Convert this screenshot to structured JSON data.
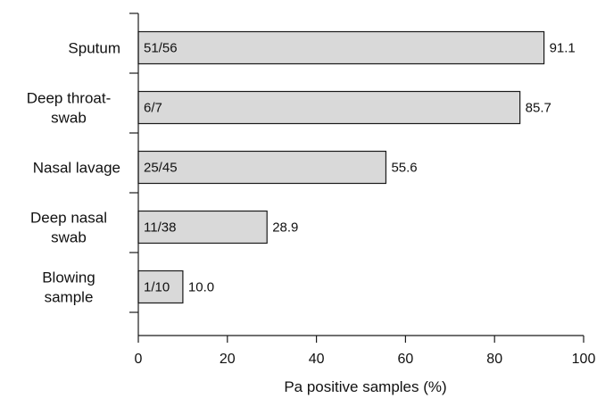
{
  "chart_data": {
    "type": "bar",
    "orientation": "horizontal",
    "categories": [
      [
        "Sputum"
      ],
      [
        "Deep throat-",
        "swab"
      ],
      [
        "Nasal lavage"
      ],
      [
        "Deep nasal",
        "swab"
      ],
      [
        "Blowing",
        "sample"
      ]
    ],
    "values": [
      91.1,
      85.7,
      55.6,
      28.9,
      10.0
    ],
    "value_labels": [
      "91.1",
      "85.7",
      "55.6",
      "28.9",
      "10.0"
    ],
    "count_labels": [
      "51/56",
      "6/7",
      "25/45",
      "11/38",
      "1/10"
    ],
    "xlabel": "Pa positive samples (%)",
    "ylabel": "",
    "xlim": [
      0,
      100
    ],
    "xticks": [
      "0",
      "20",
      "40",
      "60",
      "80",
      "100"
    ],
    "grid": false,
    "bar_color": "#d9d9d9",
    "bar_stroke": "#1a1a1a"
  }
}
